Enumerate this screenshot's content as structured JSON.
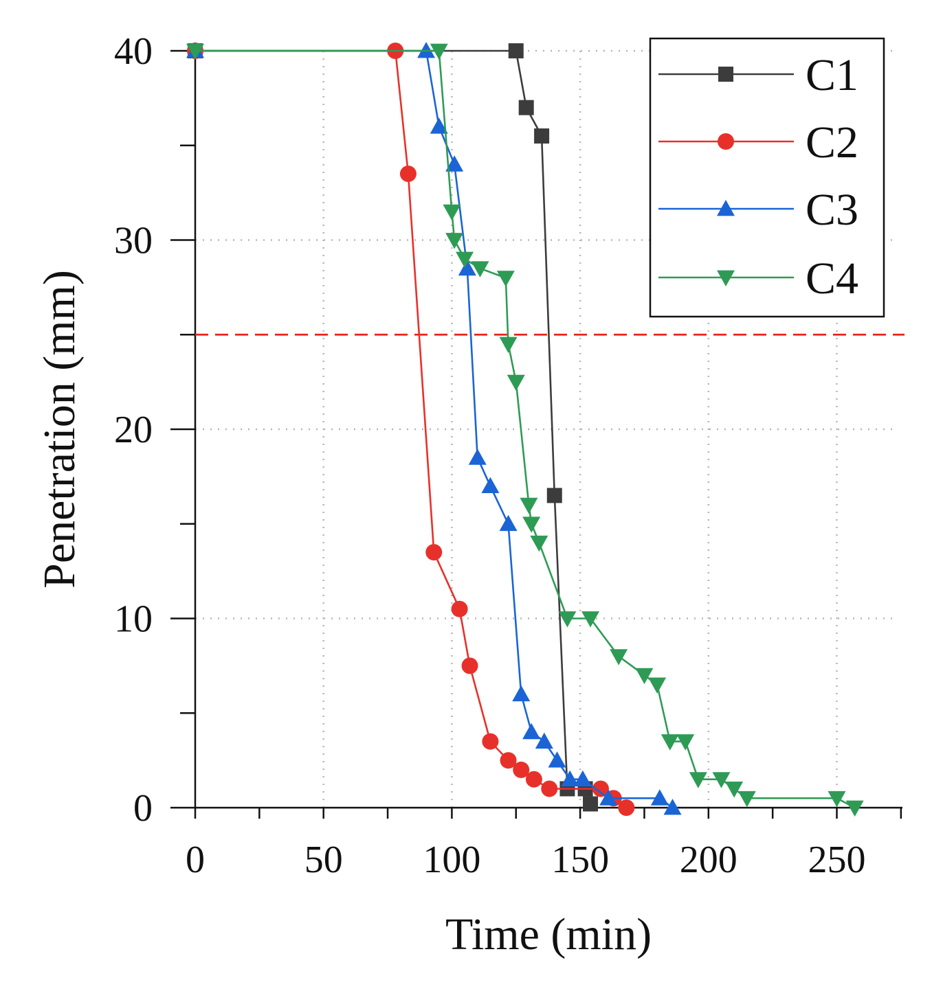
{
  "chart_data": {
    "type": "line",
    "title": "",
    "xlabel": "Time (min)",
    "ylabel": "Penetration (mm)",
    "xlim": [
      0,
      275
    ],
    "ylim": [
      0,
      40
    ],
    "xticks": [
      0,
      50,
      100,
      150,
      200,
      250
    ],
    "yticks": [
      0,
      10,
      20,
      30,
      40
    ],
    "xticks_minor": [
      25,
      75,
      125,
      175,
      225,
      275
    ],
    "yticks_minor": [
      5,
      15,
      25,
      35
    ],
    "grid": "dotted",
    "legend_position": "top-right",
    "reference_line": {
      "orientation": "horizontal",
      "y": 25,
      "style": "dashed",
      "color": "#e8221b"
    },
    "series": [
      {
        "name": "C1",
        "color": "#3c3c3c",
        "marker": "square",
        "x": [
          0,
          125,
          129,
          135,
          140,
          145,
          152,
          154
        ],
        "y": [
          40,
          40,
          37,
          35.5,
          16.5,
          1,
          1,
          0.2
        ]
      },
      {
        "name": "C2",
        "color": "#e8302a",
        "marker": "circle",
        "x": [
          0,
          78,
          83,
          93,
          103,
          107,
          115,
          122,
          127,
          132,
          138,
          158,
          163,
          168
        ],
        "y": [
          40,
          40,
          33.5,
          13.5,
          10.5,
          7.5,
          3.5,
          2.5,
          2,
          1.5,
          1,
          1,
          0.5,
          0
        ]
      },
      {
        "name": "C3",
        "color": "#1a64d6",
        "marker": "triangle-up",
        "x": [
          0,
          90,
          95,
          101,
          106,
          110,
          115,
          122,
          127,
          131,
          136,
          141,
          146,
          151,
          161,
          181,
          186
        ],
        "y": [
          40,
          40,
          36,
          34,
          28.5,
          18.5,
          17,
          15,
          6,
          4,
          3.5,
          2.5,
          1.5,
          1.5,
          0.5,
          0.5,
          0
        ]
      },
      {
        "name": "C4",
        "color": "#2e9b55",
        "marker": "triangle-down",
        "x": [
          0,
          95,
          100,
          101,
          105,
          111,
          121,
          122,
          125,
          130,
          131,
          134,
          145,
          154,
          165,
          175,
          180,
          185,
          191,
          196,
          205,
          210,
          215,
          250,
          257
        ],
        "y": [
          40,
          40,
          31.5,
          30,
          29,
          28.5,
          28,
          24.5,
          22.5,
          16,
          15,
          14,
          10,
          10,
          8,
          7,
          6.5,
          3.5,
          3.5,
          1.5,
          1.5,
          1,
          0.5,
          0.5,
          0
        ]
      }
    ]
  }
}
